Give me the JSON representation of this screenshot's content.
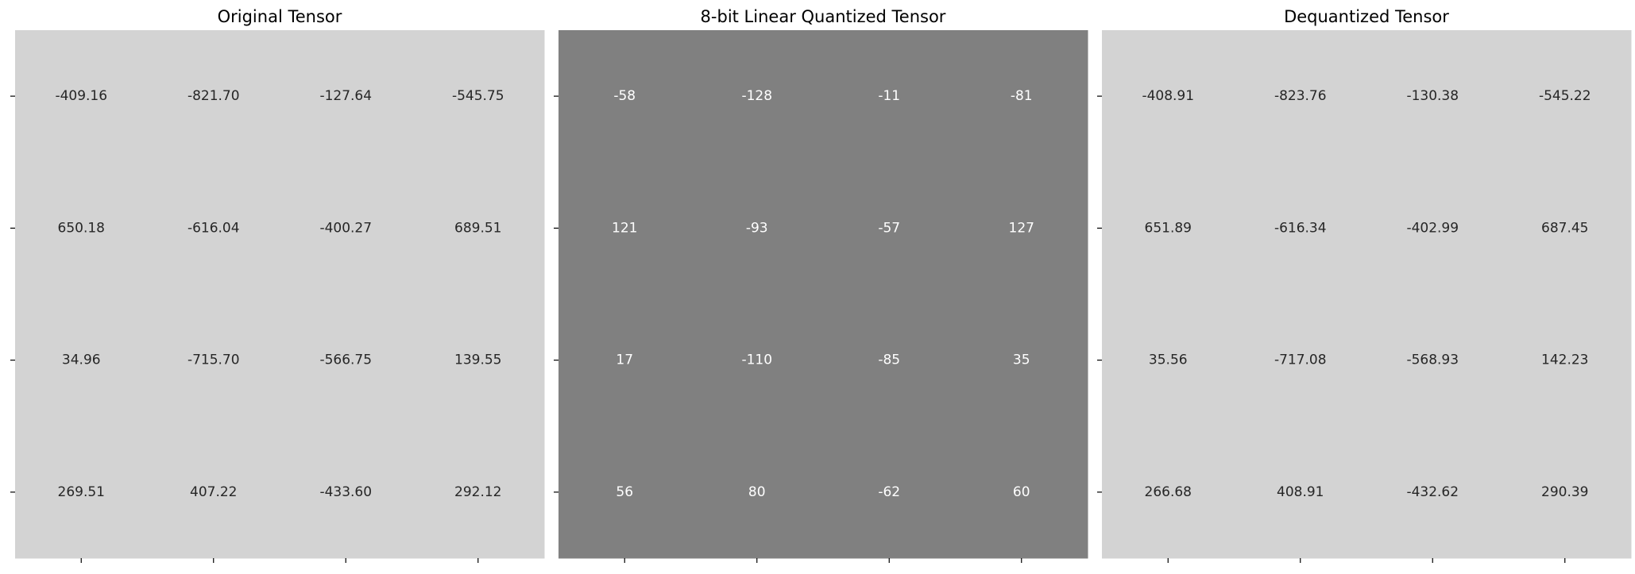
{
  "chart_data": [
    {
      "type": "heatmap",
      "title": "Original Tensor",
      "xlabel": "",
      "ylabel": "",
      "x_tick_labels": [],
      "y_tick_labels": [],
      "rows": 4,
      "cols": 4,
      "values": [
        [
          -409.16,
          -821.7,
          -127.64,
          -545.75
        ],
        [
          650.18,
          -616.04,
          -400.27,
          689.51
        ],
        [
          34.96,
          -715.7,
          -566.75,
          139.55
        ],
        [
          269.51,
          407.22,
          -433.6,
          292.12
        ]
      ],
      "cell_labels": [
        [
          "-409.16",
          "-821.70",
          "-127.64",
          "-545.75"
        ],
        [
          "650.18",
          "-616.04",
          "-400.27",
          "689.51"
        ],
        [
          "34.96",
          "-715.70",
          "-566.75",
          "139.55"
        ],
        [
          "269.51",
          "407.22",
          "-433.60",
          "292.12"
        ]
      ],
      "background_color": "#d3d3d3",
      "label_color": "#262626",
      "grid": false,
      "colorbar": false
    },
    {
      "type": "heatmap",
      "title": "8-bit Linear Quantized Tensor",
      "xlabel": "",
      "ylabel": "",
      "x_tick_labels": [],
      "y_tick_labels": [],
      "rows": 4,
      "cols": 4,
      "values": [
        [
          -58,
          -128,
          -11,
          -81
        ],
        [
          121,
          -93,
          -57,
          127
        ],
        [
          17,
          -110,
          -85,
          35
        ],
        [
          56,
          80,
          -62,
          60
        ]
      ],
      "cell_labels": [
        [
          "-58",
          "-128",
          "-11",
          "-81"
        ],
        [
          "121",
          "-93",
          "-57",
          "127"
        ],
        [
          "17",
          "-110",
          "-85",
          "35"
        ],
        [
          "56",
          "80",
          "-62",
          "60"
        ]
      ],
      "background_color": "#808080",
      "label_color": "#ffffff",
      "grid": false,
      "colorbar": false
    },
    {
      "type": "heatmap",
      "title": "Dequantized Tensor",
      "xlabel": "",
      "ylabel": "",
      "x_tick_labels": [],
      "y_tick_labels": [],
      "rows": 4,
      "cols": 4,
      "values": [
        [
          -408.91,
          -823.76,
          -130.38,
          -545.22
        ],
        [
          651.89,
          -616.34,
          -402.99,
          687.45
        ],
        [
          35.56,
          -717.08,
          -568.93,
          142.23
        ],
        [
          266.68,
          408.91,
          -432.62,
          290.39
        ]
      ],
      "cell_labels": [
        [
          "-408.91",
          "-823.76",
          "-130.38",
          "-545.22"
        ],
        [
          "651.89",
          "-616.34",
          "-402.99",
          "687.45"
        ],
        [
          "35.56",
          "-717.08",
          "-568.93",
          "142.23"
        ],
        [
          "266.68",
          "408.91",
          "-432.62",
          "290.39"
        ]
      ],
      "background_color": "#d3d3d3",
      "label_color": "#262626",
      "grid": false,
      "colorbar": false
    }
  ]
}
